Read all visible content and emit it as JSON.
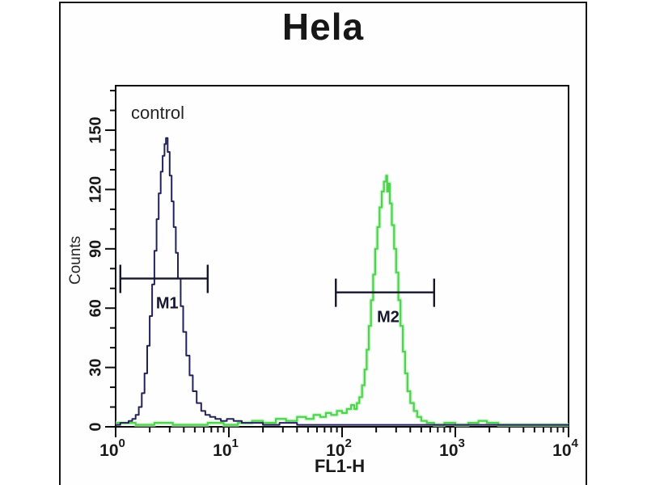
{
  "title": "Hela",
  "plot": {
    "annotation": "control",
    "xlabel": "FL1-H",
    "ylabel": "Counts"
  },
  "chart_data": {
    "type": "line",
    "subtype": "flow-cytometry-overlay-histogram",
    "title": "Hela",
    "xlabel": "FL1-H",
    "ylabel": "Counts",
    "x_scale": "log",
    "xlim": [
      1,
      10000
    ],
    "ylim": [
      0,
      172.5
    ],
    "grid": false,
    "legend": "none",
    "annotation": "control",
    "x_tick_exponents": [
      "0",
      "1",
      "2",
      "3",
      "4"
    ],
    "y_ticks": [
      0,
      30,
      60,
      90,
      120,
      150
    ],
    "y_minor_step": 10,
    "y_minor_max": 170,
    "series": [
      {
        "name": "control",
        "color": "#23235a",
        "points": [
          [
            1.0,
            1
          ],
          [
            1.1,
            2
          ],
          [
            1.22,
            2
          ],
          [
            1.3,
            3
          ],
          [
            1.4,
            4
          ],
          [
            1.5,
            6
          ],
          [
            1.6,
            10
          ],
          [
            1.7,
            17
          ],
          [
            1.8,
            27
          ],
          [
            1.9,
            41
          ],
          [
            2.0,
            56
          ],
          [
            2.1,
            72
          ],
          [
            2.2,
            89
          ],
          [
            2.3,
            105
          ],
          [
            2.4,
            118
          ],
          [
            2.5,
            129
          ],
          [
            2.6,
            137
          ],
          [
            2.7,
            143
          ],
          [
            2.78,
            146
          ],
          [
            2.88,
            139
          ],
          [
            3.0,
            127
          ],
          [
            3.12,
            114
          ],
          [
            3.25,
            101
          ],
          [
            3.4,
            88
          ],
          [
            3.55,
            75
          ],
          [
            3.75,
            61
          ],
          [
            3.95,
            48
          ],
          [
            4.2,
            36
          ],
          [
            4.5,
            26
          ],
          [
            4.8,
            18
          ],
          [
            5.2,
            12
          ],
          [
            5.7,
            8
          ],
          [
            6.2,
            6
          ],
          [
            6.8,
            5
          ],
          [
            7.6,
            4
          ],
          [
            8.5,
            3
          ],
          [
            9.6,
            4
          ],
          [
            11,
            3
          ],
          [
            13,
            2
          ],
          [
            16,
            2
          ],
          [
            20,
            1
          ],
          [
            28,
            2
          ],
          [
            40,
            1
          ],
          [
            60,
            1
          ],
          [
            90,
            1
          ],
          [
            140,
            1
          ],
          [
            220,
            1
          ],
          [
            350,
            1
          ],
          [
            600,
            1
          ],
          [
            1000,
            1
          ],
          [
            2000,
            1
          ],
          [
            4000,
            1
          ],
          [
            10000,
            1
          ]
        ]
      },
      {
        "name": "green-peak",
        "color": "#4fd24f",
        "points": [
          [
            1.0,
            2
          ],
          [
            1.5,
            1
          ],
          [
            2.2,
            2
          ],
          [
            3.2,
            1
          ],
          [
            4.5,
            1
          ],
          [
            6.5,
            2
          ],
          [
            9,
            1
          ],
          [
            12,
            2
          ],
          [
            16,
            3
          ],
          [
            20,
            2
          ],
          [
            26,
            4
          ],
          [
            32,
            3
          ],
          [
            40,
            5
          ],
          [
            48,
            4
          ],
          [
            56,
            6
          ],
          [
            64,
            5
          ],
          [
            72,
            7
          ],
          [
            80,
            6
          ],
          [
            90,
            8
          ],
          [
            100,
            7
          ],
          [
            110,
            9
          ],
          [
            120,
            11
          ],
          [
            128,
            9
          ],
          [
            135,
            12
          ],
          [
            142,
            15
          ],
          [
            150,
            21
          ],
          [
            158,
            29
          ],
          [
            165,
            39
          ],
          [
            172,
            51
          ],
          [
            180,
            64
          ],
          [
            188,
            77
          ],
          [
            196,
            90
          ],
          [
            205,
            101
          ],
          [
            214,
            111
          ],
          [
            224,
            119
          ],
          [
            234,
            124
          ],
          [
            245,
            127
          ],
          [
            250,
            119
          ],
          [
            256,
            123
          ],
          [
            264,
            113
          ],
          [
            275,
            102
          ],
          [
            288,
            90
          ],
          [
            300,
            78
          ],
          [
            314,
            64
          ],
          [
            328,
            51
          ],
          [
            344,
            38
          ],
          [
            360,
            27
          ],
          [
            378,
            18
          ],
          [
            400,
            12
          ],
          [
            430,
            8
          ],
          [
            460,
            5
          ],
          [
            500,
            3
          ],
          [
            560,
            2
          ],
          [
            650,
            1
          ],
          [
            800,
            2
          ],
          [
            1000,
            1
          ],
          [
            1300,
            2
          ],
          [
            1600,
            3
          ],
          [
            1900,
            2
          ],
          [
            2400,
            1
          ],
          [
            3200,
            1
          ],
          [
            4500,
            1
          ],
          [
            6500,
            1
          ],
          [
            10000,
            1
          ]
        ]
      }
    ],
    "markers": [
      {
        "label": "M1",
        "x_from": 1.1,
        "x_to": 6.5,
        "counts": 75
      },
      {
        "label": "M2",
        "x_from": 88,
        "x_to": 650,
        "counts": 68
      }
    ]
  },
  "colors": {
    "frame": "#141414",
    "axis": "#0d0d0d",
    "control_curve": "#23235a",
    "green_curve": "#4fd24f",
    "green_halo": "#b9f0b9",
    "marker": "#16162e",
    "tick_text": "#1a1a1a"
  }
}
